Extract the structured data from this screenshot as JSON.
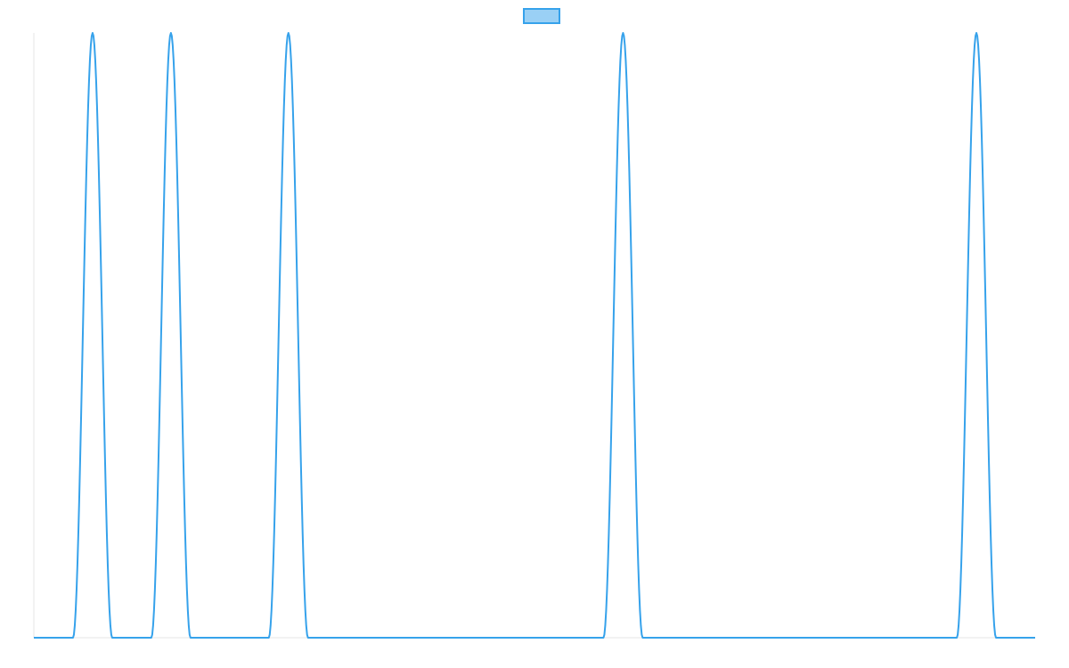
{
  "chart_data": {
    "type": "line",
    "title": "",
    "xlabel": "",
    "ylabel": "",
    "xlim": [
      0,
      1125
    ],
    "ylim": [
      0,
      1
    ],
    "grid": false,
    "legend": {
      "placement": "top-center",
      "entries": [
        {
          "label": "",
          "color": "#36a2eb",
          "fill": "#9ad0f5"
        }
      ]
    },
    "series": [
      {
        "color": "#36a2eb",
        "peak_width": 44,
        "peaks": [
          {
            "x": 66,
            "y": 1
          },
          {
            "x": 154,
            "y": 1
          },
          {
            "x": 286,
            "y": 1
          },
          {
            "x": 662,
            "y": 1
          },
          {
            "x": 1059,
            "y": 1
          }
        ]
      }
    ]
  }
}
